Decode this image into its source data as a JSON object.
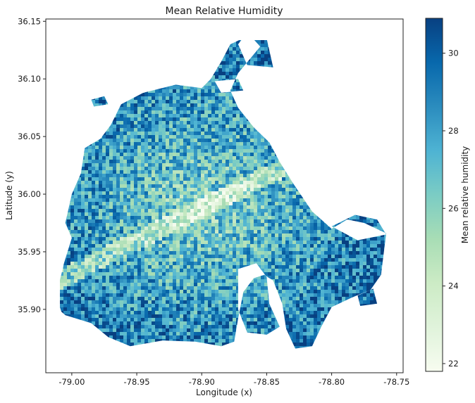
{
  "chart_data": {
    "type": "heatmap",
    "title": "Mean Relative Humidity",
    "xlabel": "Longitude (x)",
    "ylabel": "Latitude (y)",
    "xlim": [
      -79.02,
      -78.745
    ],
    "ylim": [
      35.845,
      36.152
    ],
    "xticks": [
      -79.0,
      -78.95,
      -78.9,
      -78.85,
      -78.8,
      -78.75
    ],
    "xtick_labels": [
      "-79.00",
      "-78.95",
      "-78.90",
      "-78.85",
      "-78.80",
      "-78.75"
    ],
    "yticks": [
      35.9,
      35.95,
      36.0,
      36.05,
      36.1,
      36.15
    ],
    "ytick_labels": [
      "35.90",
      "35.95",
      "36.00",
      "36.05",
      "36.10",
      "36.15"
    ],
    "colorbar": {
      "label": "Mean relative humidity",
      "vmin": 21.8,
      "vmax": 30.9,
      "ticks": [
        22,
        24,
        26,
        28,
        30
      ],
      "tick_labels": [
        "22",
        "24",
        "26",
        "28",
        "30"
      ],
      "colormap": "GnBu",
      "colors": [
        "#f7fcf0",
        "#e0f3db",
        "#ccebc5",
        "#a8ddb5",
        "#7bccc4",
        "#4eb3d3",
        "#2b8cbe",
        "#0868ac",
        "#084081"
      ]
    },
    "grid": false,
    "legend": "none",
    "region": {
      "outline": [
        [
          -79.005,
          35.895
        ],
        [
          -78.985,
          35.888
        ],
        [
          -78.972,
          35.876
        ],
        [
          -78.955,
          35.868
        ],
        [
          -78.93,
          35.873
        ],
        [
          -78.905,
          35.872
        ],
        [
          -78.885,
          35.868
        ],
        [
          -78.875,
          35.872
        ],
        [
          -78.872,
          35.892
        ],
        [
          -78.868,
          35.915
        ],
        [
          -78.86,
          35.927
        ],
        [
          -78.852,
          35.93
        ],
        [
          -78.845,
          35.925
        ],
        [
          -78.838,
          35.905
        ],
        [
          -78.835,
          35.883
        ],
        [
          -78.828,
          35.866
        ],
        [
          -78.815,
          35.868
        ],
        [
          -78.808,
          35.885
        ],
        [
          -78.8,
          35.902
        ],
        [
          -78.785,
          35.91
        ],
        [
          -78.77,
          35.917
        ],
        [
          -78.762,
          35.93
        ],
        [
          -78.758,
          35.966
        ],
        [
          -78.775,
          35.975
        ],
        [
          -78.788,
          35.978
        ],
        [
          -78.8,
          35.97
        ],
        [
          -78.815,
          35.985
        ],
        [
          -78.83,
          36.01
        ],
        [
          -78.84,
          36.028
        ],
        [
          -78.848,
          36.045
        ],
        [
          -78.86,
          36.058
        ],
        [
          -78.872,
          36.075
        ],
        [
          -78.878,
          36.09
        ],
        [
          -78.872,
          36.105
        ],
        [
          -78.855,
          36.128
        ],
        [
          -78.863,
          36.138
        ],
        [
          -78.878,
          36.13
        ],
        [
          -78.885,
          36.115
        ],
        [
          -78.893,
          36.1
        ],
        [
          -78.9,
          36.092
        ],
        [
          -78.92,
          36.095
        ],
        [
          -78.945,
          36.088
        ],
        [
          -78.962,
          36.078
        ],
        [
          -78.97,
          36.06
        ],
        [
          -78.978,
          36.048
        ],
        [
          -78.99,
          36.04
        ],
        [
          -78.993,
          36.018
        ],
        [
          -79.0,
          36.0
        ],
        [
          -79.005,
          35.975
        ],
        [
          -79.0,
          35.962
        ],
        [
          -79.006,
          35.94
        ],
        [
          -79.012,
          35.912
        ],
        [
          -79.008,
          35.898
        ]
      ],
      "cutout": [
        [
          -78.872,
          35.935
        ],
        [
          -78.858,
          35.94
        ],
        [
          -78.85,
          35.928
        ],
        [
          -78.848,
          35.905
        ],
        [
          -78.84,
          35.885
        ],
        [
          -78.85,
          35.878
        ],
        [
          -78.865,
          35.88
        ],
        [
          -78.872,
          35.9
        ]
      ],
      "islands": [
        [
          [
            -78.985,
            36.082
          ],
          [
            -78.975,
            36.085
          ],
          [
            -78.972,
            36.078
          ],
          [
            -78.983,
            36.076
          ]
        ],
        [
          [
            -78.89,
            36.098
          ],
          [
            -78.872,
            36.1
          ],
          [
            -78.868,
            36.09
          ],
          [
            -78.885,
            36.088
          ]
        ],
        [
          [
            -78.872,
            36.13
          ],
          [
            -78.86,
            36.148
          ],
          [
            -78.85,
            36.135
          ],
          [
            -78.845,
            36.11
          ],
          [
            -78.865,
            36.112
          ]
        ],
        [
          [
            -78.8,
            35.972
          ],
          [
            -78.782,
            35.982
          ],
          [
            -78.765,
            35.978
          ],
          [
            -78.758,
            35.965
          ],
          [
            -78.78,
            35.96
          ]
        ],
        [
          [
            -78.78,
            35.912
          ],
          [
            -78.768,
            35.918
          ],
          [
            -78.765,
            35.905
          ],
          [
            -78.778,
            35.903
          ]
        ]
      ]
    }
  }
}
